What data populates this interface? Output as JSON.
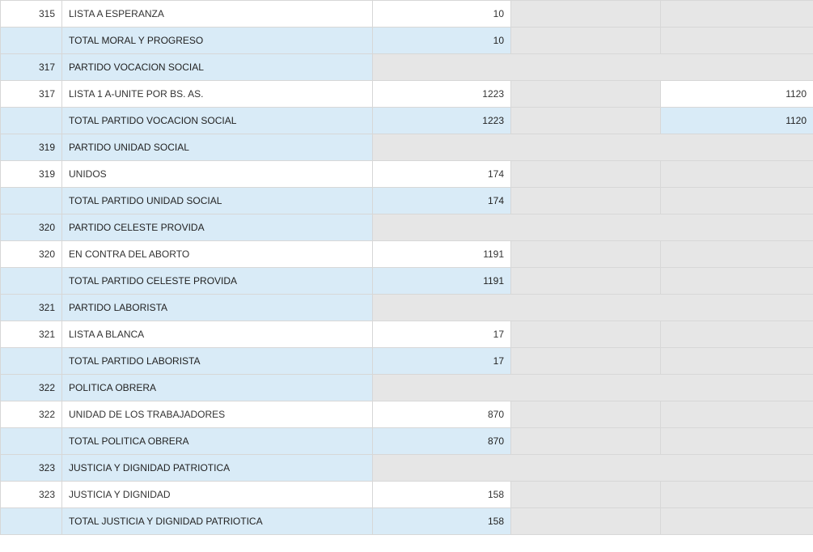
{
  "rows": [
    {
      "type": "list",
      "code": "315",
      "name": "LISTA A ESPERANZA",
      "v1": "10",
      "v2": "",
      "v3": ""
    },
    {
      "type": "total",
      "code": "",
      "name": "TOTAL MORAL Y PROGRESO",
      "v1": "10",
      "v2": "",
      "v3": ""
    },
    {
      "type": "party",
      "code": "317",
      "name": "PARTIDO VOCACION SOCIAL"
    },
    {
      "type": "list",
      "code": "317",
      "name": "LISTA 1 A-UNITE POR BS. AS.",
      "v1": "1223",
      "v2": "",
      "v3": "1120"
    },
    {
      "type": "total",
      "code": "",
      "name": "TOTAL PARTIDO VOCACION SOCIAL",
      "v1": "1223",
      "v2": "",
      "v3": "1120"
    },
    {
      "type": "party",
      "code": "319",
      "name": "PARTIDO UNIDAD SOCIAL"
    },
    {
      "type": "list",
      "code": "319",
      "name": "UNIDOS",
      "v1": "174",
      "v2": "",
      "v3": ""
    },
    {
      "type": "total",
      "code": "",
      "name": "TOTAL PARTIDO UNIDAD SOCIAL",
      "v1": "174",
      "v2": "",
      "v3": ""
    },
    {
      "type": "party",
      "code": "320",
      "name": "PARTIDO CELESTE PROVIDA"
    },
    {
      "type": "list",
      "code": "320",
      "name": "EN CONTRA DEL ABORTO",
      "v1": "1191",
      "v2": "",
      "v3": ""
    },
    {
      "type": "total",
      "code": "",
      "name": "TOTAL PARTIDO CELESTE PROVIDA",
      "v1": "1191",
      "v2": "",
      "v3": ""
    },
    {
      "type": "party",
      "code": "321",
      "name": "PARTIDO LABORISTA"
    },
    {
      "type": "list",
      "code": "321",
      "name": "LISTA A BLANCA",
      "v1": "17",
      "v2": "",
      "v3": ""
    },
    {
      "type": "total",
      "code": "",
      "name": "TOTAL PARTIDO LABORISTA",
      "v1": "17",
      "v2": "",
      "v3": ""
    },
    {
      "type": "party",
      "code": "322",
      "name": "POLITICA OBRERA"
    },
    {
      "type": "list",
      "code": "322",
      "name": "UNIDAD DE LOS TRABAJADORES",
      "v1": "870",
      "v2": "",
      "v3": ""
    },
    {
      "type": "total",
      "code": "",
      "name": "TOTAL POLITICA OBRERA",
      "v1": "870",
      "v2": "",
      "v3": ""
    },
    {
      "type": "party",
      "code": "323",
      "name": "JUSTICIA Y DIGNIDAD PATRIOTICA"
    },
    {
      "type": "list",
      "code": "323",
      "name": "JUSTICIA Y DIGNIDAD",
      "v1": "158",
      "v2": "",
      "v3": ""
    },
    {
      "type": "total",
      "code": "",
      "name": "TOTAL JUSTICIA Y DIGNIDAD PATRIOTICA",
      "v1": "158",
      "v2": "",
      "v3": ""
    }
  ],
  "colors": {
    "total_row_bg": "#d9ebf7",
    "party_row_bg": "#d9ebf7",
    "empty_cell_gray": "#e6e6e6",
    "text": "#333333"
  }
}
